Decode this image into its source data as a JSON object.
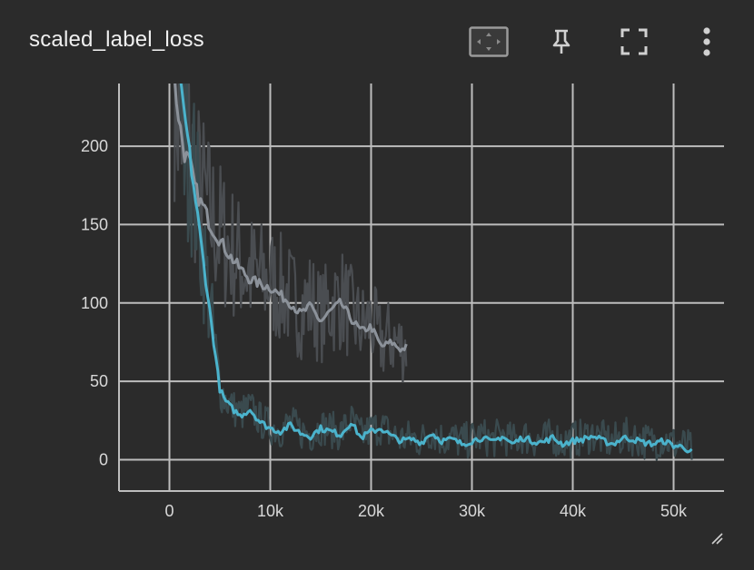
{
  "card": {
    "title": "scaled_label_loss"
  },
  "toolbar": {
    "icons": [
      "fit-domain-icon",
      "pin-icon",
      "fullscreen-icon",
      "more-vert-icon"
    ]
  },
  "colors": {
    "background": "#2b2b2b",
    "grid": "#bdbdbd",
    "series_a_smoothed": "#8c929a",
    "series_a_raw": "#4a4d51",
    "series_b_smoothed": "#4bb3cc",
    "series_b_raw": "#3a4a4e"
  },
  "chart_data": {
    "type": "line",
    "title": "scaled_label_loss",
    "xlabel": "",
    "ylabel": "",
    "xlim": [
      -5000,
      55000
    ],
    "ylim": [
      -20,
      240
    ],
    "x_ticks": [
      0,
      10000,
      20000,
      30000,
      40000,
      50000
    ],
    "x_tick_labels": [
      "0",
      "10k",
      "20k",
      "30k",
      "40k",
      "50k"
    ],
    "y_ticks": [
      0,
      50,
      100,
      150,
      200
    ],
    "y_tick_labels": [
      "0",
      "50",
      "100",
      "150",
      "200"
    ],
    "grid": true,
    "series": [
      {
        "color": "#8c929a",
        "x": [
          500,
          1000,
          1500,
          2000,
          2500,
          3000,
          3500,
          4000,
          5000,
          6000,
          7000,
          8000,
          9000,
          10000,
          11000,
          12000,
          13000,
          14000,
          15000,
          16000,
          17000,
          18000,
          19000,
          20000,
          21000,
          22000,
          23000,
          23500
        ],
        "values": [
          240,
          215,
          195,
          190,
          175,
          165,
          160,
          150,
          140,
          130,
          122,
          115,
          112,
          110,
          105,
          100,
          93,
          98,
          88,
          95,
          100,
          90,
          82,
          85,
          72,
          75,
          70,
          72
        ]
      },
      {
        "color": "#4bb3cc",
        "x": [
          1000,
          1500,
          2000,
          2500,
          3000,
          3500,
          4000,
          4500,
          5000,
          5500,
          6000,
          7000,
          8000,
          9000,
          10000,
          11000,
          12000,
          13000,
          14000,
          15000,
          16000,
          17000,
          18000,
          19000,
          20000,
          21000,
          22000,
          23000,
          24000,
          25000,
          26000,
          27000,
          28000,
          29000,
          30000,
          31000,
          32000,
          33000,
          34000,
          35000,
          36000,
          37000,
          38000,
          39000,
          40000,
          41000,
          42000,
          43000,
          44000,
          45000,
          46000,
          47000,
          48000,
          49000,
          50000,
          51000,
          51800
        ],
        "values": [
          240,
          220,
          195,
          170,
          145,
          120,
          95,
          70,
          45,
          38,
          34,
          28,
          32,
          24,
          20,
          18,
          22,
          17,
          15,
          20,
          18,
          16,
          24,
          14,
          18,
          20,
          15,
          12,
          13,
          11,
          17,
          12,
          13,
          10,
          12,
          14,
          11,
          15,
          10,
          14,
          12,
          11,
          14,
          10,
          12,
          13,
          15,
          12,
          10,
          14,
          13,
          11,
          10,
          12,
          9,
          8,
          5
        ]
      }
    ]
  }
}
